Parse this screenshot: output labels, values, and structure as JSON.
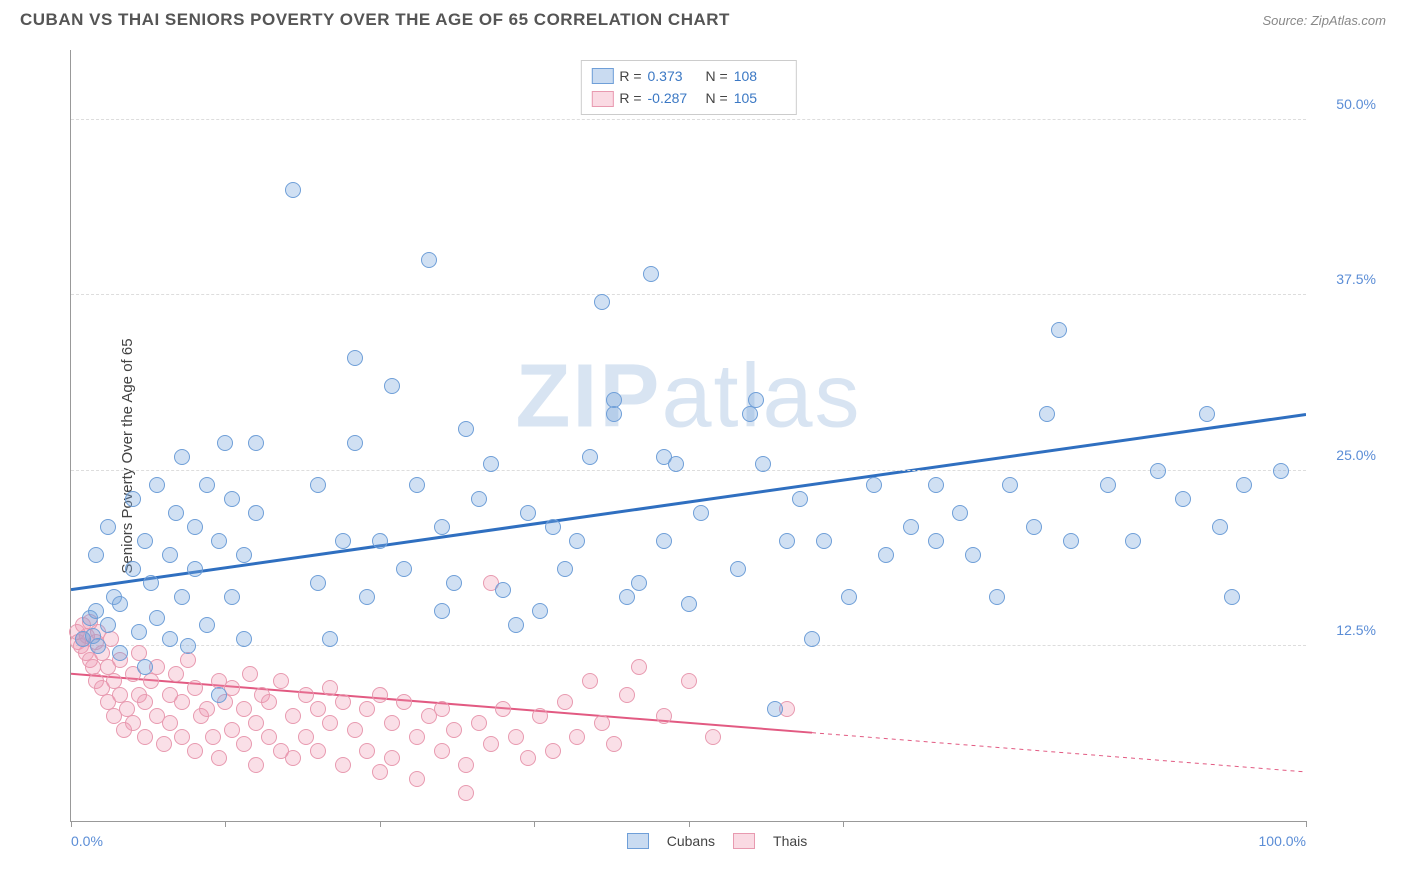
{
  "header": {
    "title": "CUBAN VS THAI SENIORS POVERTY OVER THE AGE OF 65 CORRELATION CHART",
    "source_prefix": "Source: ",
    "source_name": "ZipAtlas.com"
  },
  "chart": {
    "type": "scatter",
    "ylabel": "Seniors Poverty Over the Age of 65",
    "watermark_a": "ZIP",
    "watermark_b": "atlas",
    "background_color": "#ffffff",
    "grid_color": "#dddddd",
    "axis_color": "#999999",
    "tick_label_color": "#5b8dd6",
    "xlim": [
      0,
      100
    ],
    "ylim": [
      0,
      55
    ],
    "y_gridlines": [
      12.5,
      25.0,
      37.5,
      50.0
    ],
    "y_tick_labels": [
      "12.5%",
      "25.0%",
      "37.5%",
      "50.0%"
    ],
    "x_ticks": [
      0,
      12.5,
      25,
      37.5,
      50,
      62.5,
      100
    ],
    "x_tick_labels_left": "0.0%",
    "x_tick_labels_right": "100.0%",
    "legend": {
      "series_a_name": "Cubans",
      "series_b_name": "Thais"
    },
    "stats": {
      "r_label": "R =",
      "n_label": "N =",
      "series_a": {
        "r": "0.373",
        "n": "108"
      },
      "series_b": {
        "r": "-0.287",
        "n": "105"
      }
    },
    "series_a": {
      "color_fill": "rgba(120,165,220,0.35)",
      "color_stroke": "#6f9fd8",
      "trend_color": "#2f6fc0",
      "trend_width": 3,
      "trend": {
        "x1": 0,
        "y1": 16.5,
        "x2": 100,
        "y2": 29.0
      },
      "marker_radius": 8,
      "points": [
        [
          1,
          13
        ],
        [
          1.5,
          14.5
        ],
        [
          1.8,
          13.2
        ],
        [
          2,
          15
        ],
        [
          2.2,
          12.5
        ],
        [
          2,
          19
        ],
        [
          3,
          14
        ],
        [
          3,
          21
        ],
        [
          3.5,
          16
        ],
        [
          4,
          12
        ],
        [
          4,
          15.5
        ],
        [
          5,
          18
        ],
        [
          5,
          23
        ],
        [
          5.5,
          13.5
        ],
        [
          6,
          20
        ],
        [
          6,
          11
        ],
        [
          6.5,
          17
        ],
        [
          7,
          14.5
        ],
        [
          7,
          24
        ],
        [
          8,
          19
        ],
        [
          8,
          13
        ],
        [
          8.5,
          22
        ],
        [
          9,
          16
        ],
        [
          9,
          26
        ],
        [
          9.5,
          12.5
        ],
        [
          10,
          21
        ],
        [
          10,
          18
        ],
        [
          11,
          14
        ],
        [
          11,
          24
        ],
        [
          12,
          20
        ],
        [
          12,
          9
        ],
        [
          12.5,
          27
        ],
        [
          13,
          23
        ],
        [
          13,
          16
        ],
        [
          14,
          19
        ],
        [
          14,
          13
        ],
        [
          15,
          22
        ],
        [
          15,
          27
        ],
        [
          18,
          45
        ],
        [
          20,
          17
        ],
        [
          20,
          24
        ],
        [
          21,
          13
        ],
        [
          22,
          20
        ],
        [
          23,
          27
        ],
        [
          23,
          33
        ],
        [
          24,
          16
        ],
        [
          25,
          20
        ],
        [
          26,
          31
        ],
        [
          27,
          18
        ],
        [
          28,
          24
        ],
        [
          29,
          40
        ],
        [
          30,
          15
        ],
        [
          30,
          21
        ],
        [
          31,
          17
        ],
        [
          32,
          28
        ],
        [
          33,
          23
        ],
        [
          34,
          25.5
        ],
        [
          35,
          16.5
        ],
        [
          36,
          14
        ],
        [
          37,
          22
        ],
        [
          38,
          15
        ],
        [
          39,
          21
        ],
        [
          40,
          18
        ],
        [
          41,
          20
        ],
        [
          42,
          26
        ],
        [
          43,
          37
        ],
        [
          44,
          30
        ],
        [
          44,
          29
        ],
        [
          45,
          16
        ],
        [
          46,
          17
        ],
        [
          47,
          39
        ],
        [
          48,
          20
        ],
        [
          48,
          26
        ],
        [
          49,
          25.5
        ],
        [
          50,
          15.5
        ],
        [
          51,
          22
        ],
        [
          54,
          18
        ],
        [
          55,
          29
        ],
        [
          55.5,
          30
        ],
        [
          56,
          25.5
        ],
        [
          57,
          8
        ],
        [
          58,
          20
        ],
        [
          59,
          23
        ],
        [
          60,
          13
        ],
        [
          61,
          20
        ],
        [
          63,
          16
        ],
        [
          65,
          24
        ],
        [
          66,
          19
        ],
        [
          68,
          21
        ],
        [
          70,
          24
        ],
        [
          70,
          20
        ],
        [
          72,
          22
        ],
        [
          73,
          19
        ],
        [
          75,
          16
        ],
        [
          76,
          24
        ],
        [
          78,
          21
        ],
        [
          79,
          29
        ],
        [
          80,
          35
        ],
        [
          81,
          20
        ],
        [
          84,
          24
        ],
        [
          86,
          20
        ],
        [
          88,
          25
        ],
        [
          90,
          23
        ],
        [
          92,
          29
        ],
        [
          93,
          21
        ],
        [
          94,
          16
        ],
        [
          95,
          24
        ],
        [
          98,
          25
        ]
      ]
    },
    "series_b": {
      "color_fill": "rgba(240,150,175,0.30)",
      "color_stroke": "#e89ab0",
      "trend_color": "#e25a82",
      "trend_width": 2,
      "trend_solid_until_x": 60,
      "trend": {
        "x1": 0,
        "y1": 10.5,
        "x2": 100,
        "y2": 3.5
      },
      "marker_radius": 8,
      "points": [
        [
          0.5,
          13.5
        ],
        [
          0.6,
          12.8
        ],
        [
          0.8,
          12.5
        ],
        [
          1,
          14
        ],
        [
          1,
          13
        ],
        [
          1.2,
          12
        ],
        [
          1.3,
          13.2
        ],
        [
          1.5,
          11.5
        ],
        [
          1.5,
          14.2
        ],
        [
          1.8,
          11
        ],
        [
          2,
          12.8
        ],
        [
          2,
          10
        ],
        [
          2.2,
          13.5
        ],
        [
          2.5,
          9.5
        ],
        [
          2.5,
          12
        ],
        [
          3,
          8.5
        ],
        [
          3,
          11
        ],
        [
          3.2,
          13
        ],
        [
          3.5,
          10
        ],
        [
          3.5,
          7.5
        ],
        [
          4,
          9
        ],
        [
          4,
          11.5
        ],
        [
          4.3,
          6.5
        ],
        [
          4.5,
          8
        ],
        [
          5,
          10.5
        ],
        [
          5,
          7
        ],
        [
          5.5,
          9
        ],
        [
          5.5,
          12
        ],
        [
          6,
          6
        ],
        [
          6,
          8.5
        ],
        [
          6.5,
          10
        ],
        [
          7,
          7.5
        ],
        [
          7,
          11
        ],
        [
          7.5,
          5.5
        ],
        [
          8,
          9
        ],
        [
          8,
          7
        ],
        [
          8.5,
          10.5
        ],
        [
          9,
          6
        ],
        [
          9,
          8.5
        ],
        [
          9.5,
          11.5
        ],
        [
          10,
          5
        ],
        [
          10,
          9.5
        ],
        [
          10.5,
          7.5
        ],
        [
          11,
          8
        ],
        [
          11.5,
          6
        ],
        [
          12,
          10
        ],
        [
          12,
          4.5
        ],
        [
          12.5,
          8.5
        ],
        [
          13,
          6.5
        ],
        [
          13,
          9.5
        ],
        [
          14,
          5.5
        ],
        [
          14,
          8
        ],
        [
          14.5,
          10.5
        ],
        [
          15,
          7
        ],
        [
          15,
          4
        ],
        [
          15.5,
          9
        ],
        [
          16,
          6
        ],
        [
          16,
          8.5
        ],
        [
          17,
          5
        ],
        [
          17,
          10
        ],
        [
          18,
          7.5
        ],
        [
          18,
          4.5
        ],
        [
          19,
          9
        ],
        [
          19,
          6
        ],
        [
          20,
          8
        ],
        [
          20,
          5
        ],
        [
          21,
          7
        ],
        [
          21,
          9.5
        ],
        [
          22,
          4
        ],
        [
          22,
          8.5
        ],
        [
          23,
          6.5
        ],
        [
          24,
          8
        ],
        [
          24,
          5
        ],
        [
          25,
          9
        ],
        [
          25,
          3.5
        ],
        [
          26,
          7
        ],
        [
          26,
          4.5
        ],
        [
          27,
          8.5
        ],
        [
          28,
          6
        ],
        [
          28,
          3
        ],
        [
          29,
          7.5
        ],
        [
          30,
          5
        ],
        [
          30,
          8
        ],
        [
          31,
          6.5
        ],
        [
          32,
          4
        ],
        [
          32,
          2
        ],
        [
          33,
          7
        ],
        [
          34,
          5.5
        ],
        [
          34,
          17
        ],
        [
          35,
          8
        ],
        [
          36,
          6
        ],
        [
          37,
          4.5
        ],
        [
          38,
          7.5
        ],
        [
          39,
          5
        ],
        [
          40,
          8.5
        ],
        [
          41,
          6
        ],
        [
          42,
          10
        ],
        [
          43,
          7
        ],
        [
          44,
          5.5
        ],
        [
          45,
          9
        ],
        [
          46,
          11
        ],
        [
          48,
          7.5
        ],
        [
          50,
          10
        ],
        [
          52,
          6
        ],
        [
          58,
          8
        ]
      ]
    }
  }
}
